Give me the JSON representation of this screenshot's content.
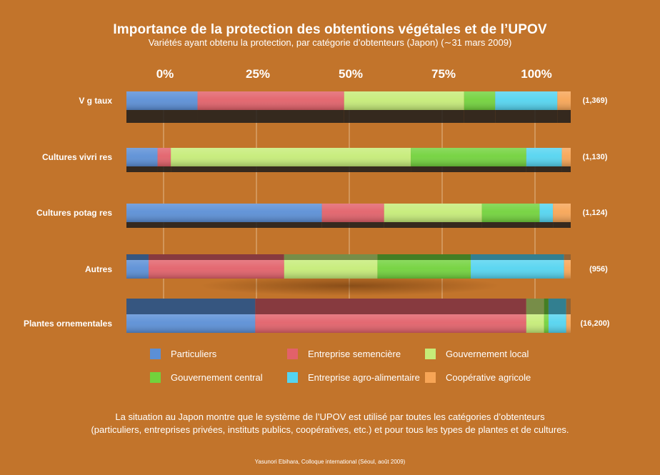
{
  "chart_data": {
    "type": "bar",
    "orientation": "horizontal",
    "stacked": true,
    "normalized": true,
    "title": "Importance de la protection des obtentions végétales et de l’UPOV",
    "subtitle": "Variétés ayant obtenu la protection, par catégorie d’obtenteurs (Japon) (∼31 mars 2009)",
    "xlabel": "",
    "ylabel": "",
    "x_ticks": [
      "0%",
      "25%",
      "50%",
      "75%",
      "100%"
    ],
    "xlim": [
      0,
      100
    ],
    "grid": true,
    "legend_position": "bottom",
    "categories": [
      "V  g  taux",
      "Cultures vivri  res",
      "Cultures potag  res",
      "Autres",
      "Plantes ornementales"
    ],
    "totals": [
      "(1,369)",
      "(1,130)",
      "(1,124)",
      "(956)",
      "(16,200)"
    ],
    "series": [
      {
        "name": "Particuliers",
        "color": "#5B8FD6",
        "values": [
          16,
          7,
          44,
          5,
          29
        ]
      },
      {
        "name": "Entreprise semencière",
        "color": "#E2616A",
        "values": [
          33,
          3,
          14,
          30.5,
          61
        ]
      },
      {
        "name": "Gouvernement local",
        "color": "#C6EC78",
        "values": [
          27,
          54,
          22,
          21,
          4
        ]
      },
      {
        "name": "Gouvernement central",
        "color": "#72D23C",
        "values": [
          7,
          26,
          13,
          21,
          1
        ]
      },
      {
        "name": "Entreprise agro-alimentaire",
        "color": "#54D4F0",
        "values": [
          14,
          8,
          3,
          21,
          4
        ]
      },
      {
        "name": "Coopérative agricole",
        "color": "#F7A556",
        "values": [
          3,
          2,
          4,
          1.5,
          1
        ]
      }
    ]
  },
  "note_line1": "La situation au Japon montre que le système de l’UPOV est utilisé par toutes les catégories d’obtenteurs",
  "note_line2": "(particuliers, entreprises privées, instituts publics, coopératives, etc.) et pour tous les types de plantes et de cultures.",
  "credit": "Yasunori Ebihara, Colloque international (Séoul, août 2009)"
}
